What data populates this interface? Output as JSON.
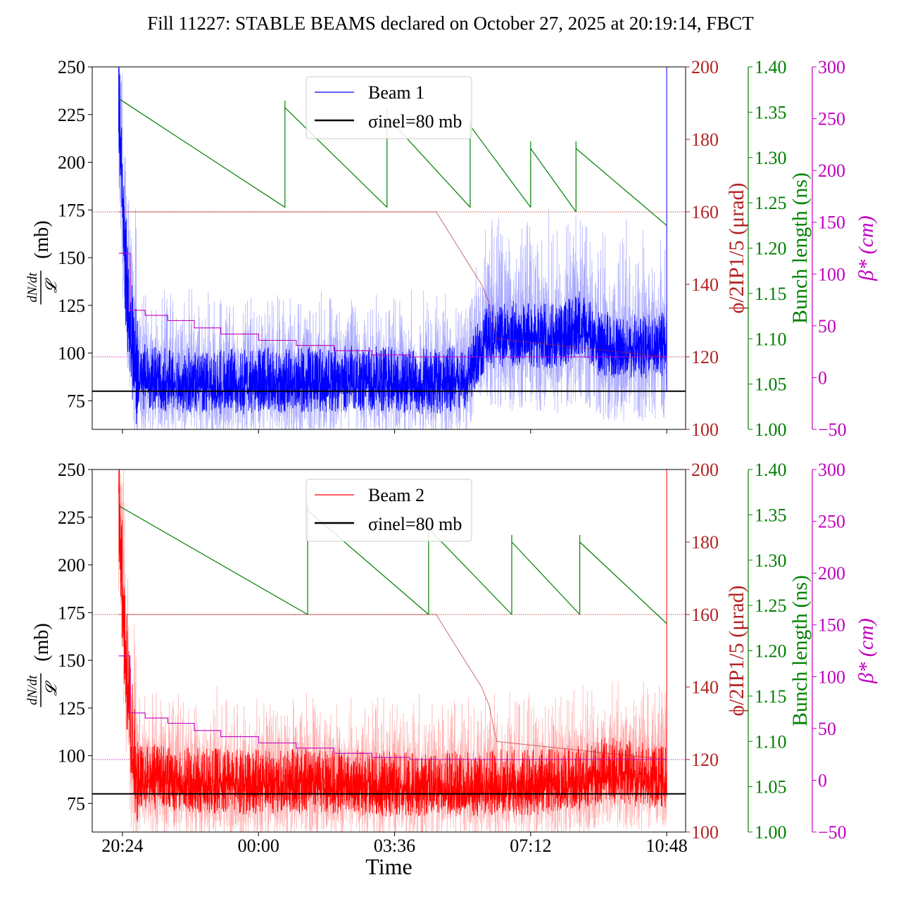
{
  "title": "Fill 11227: STABLE BEAMS declared on October 27, 2025 at 20:19:14, FBCT",
  "xlabel": "Time",
  "colors": {
    "beam1": "#0000ff",
    "beam1_light": "#9999ff",
    "beam2": "#ff0000",
    "beam2_light": "#ff9999",
    "phi": "#b22222",
    "bunch": "#008000",
    "beta": "#c000c0",
    "sigma": "#000000"
  },
  "chart_data": [
    {
      "panel": "top",
      "type": "line",
      "x_ticks": [
        "20:24",
        "00:00",
        "03:36",
        "07:12",
        "10:48"
      ],
      "x_tick_hours": [
        20.4,
        24.0,
        27.6,
        31.2,
        34.8
      ],
      "x_range_hours": [
        19.6,
        35.3
      ],
      "left_axis": {
        "label": "(mb)",
        "label_math": "dN/dt / 𝓛",
        "range": [
          60,
          250
        ],
        "ticks": [
          75,
          100,
          125,
          150,
          175,
          200,
          225,
          250
        ]
      },
      "phi_axis": {
        "label": "ϕ/2IP1/5 (μrad)",
        "range": [
          100,
          200
        ],
        "ticks": [
          100,
          120,
          140,
          160,
          180,
          200
        ]
      },
      "bunch_axis": {
        "label": "Bunch length (ns)",
        "range": [
          1.0,
          1.4
        ],
        "ticks": [
          "1.00",
          "1.05",
          "1.10",
          "1.15",
          "1.20",
          "1.25",
          "1.30",
          "1.35",
          "1.40"
        ]
      },
      "beta_axis": {
        "label": "β* (cm)",
        "range": [
          -50,
          300
        ],
        "ticks": [
          -50,
          0,
          50,
          100,
          150,
          200,
          250,
          300
        ]
      },
      "legend": {
        "position": "top-center",
        "entries": [
          "Beam 1",
          "σinel=80 mb"
        ]
      },
      "sigma_inel": 80,
      "series": [
        {
          "name": "Beam 1",
          "axis": "left",
          "x": [
            20.3,
            20.45,
            20.6,
            20.8,
            21.5,
            22.5,
            23.5,
            24.5,
            25.5,
            26.5,
            27.5,
            28.5,
            29.0,
            29.5,
            30.0,
            31.0,
            31.2,
            32.0,
            32.5,
            33.0,
            34.0,
            34.8
          ],
          "values": [
            240,
            160,
            120,
            90,
            88,
            87,
            87,
            88,
            88,
            89,
            88,
            87,
            88,
            90,
            110,
            113,
            112,
            110,
            118,
            107,
            105,
            107
          ]
        },
        {
          "name": "ϕ",
          "axis": "phi",
          "x": [
            20.3,
            28.7,
            29.0,
            29.3,
            29.6,
            29.9,
            30.1,
            30.3,
            34.8
          ],
          "values": [
            160,
            160,
            155,
            150,
            145,
            140,
            135,
            125,
            120
          ]
        },
        {
          "name": "Bunch length",
          "axis": "bunch",
          "segments": [
            {
              "x": [
                20.3,
                24.7
              ],
              "values": [
                1.365,
                1.245
              ]
            },
            {
              "x": [
                24.7,
                27.4
              ],
              "values": [
                1.355,
                1.245
              ]
            },
            {
              "x": [
                27.4,
                29.6
              ],
              "values": [
                1.345,
                1.245
              ]
            },
            {
              "x": [
                29.6,
                31.2
              ],
              "values": [
                1.335,
                1.245
              ]
            },
            {
              "x": [
                31.2,
                32.4
              ],
              "values": [
                1.31,
                1.24
              ]
            },
            {
              "x": [
                32.4,
                34.8
              ],
              "values": [
                1.31,
                1.225
              ]
            }
          ]
        },
        {
          "name": "β*",
          "axis": "beta",
          "x": [
            20.3,
            20.6,
            20.6,
            21.0,
            21.6,
            22.3,
            23.0,
            24.0,
            25.0,
            26.0,
            27.0,
            28.0,
            34.8
          ],
          "values": [
            120,
            120,
            65,
            60,
            55,
            48,
            42,
            36,
            31,
            26,
            22,
            20,
            20
          ]
        }
      ]
    },
    {
      "panel": "bottom",
      "type": "line",
      "x_ticks": [
        "20:24",
        "00:00",
        "03:36",
        "07:12",
        "10:48"
      ],
      "x_tick_hours": [
        20.4,
        24.0,
        27.6,
        31.2,
        34.8
      ],
      "x_range_hours": [
        19.6,
        35.3
      ],
      "left_axis": {
        "label": "(mb)",
        "label_math": "dN/dt / 𝓛",
        "range": [
          60,
          250
        ],
        "ticks": [
          75,
          100,
          125,
          150,
          175,
          200,
          225,
          250
        ]
      },
      "phi_axis": {
        "label": "ϕ/2IP1/5 (μrad)",
        "range": [
          100,
          200
        ],
        "ticks": [
          100,
          120,
          140,
          160,
          180,
          200
        ]
      },
      "bunch_axis": {
        "label": "Bunch length (ns)",
        "range": [
          1.0,
          1.4
        ],
        "ticks": [
          "1.00",
          "1.05",
          "1.10",
          "1.15",
          "1.20",
          "1.25",
          "1.30",
          "1.35",
          "1.40"
        ]
      },
      "beta_axis": {
        "label": "β* (cm)",
        "range": [
          -50,
          300
        ],
        "ticks": [
          -50,
          0,
          50,
          100,
          150,
          200,
          250,
          300
        ]
      },
      "legend": {
        "position": "top-center",
        "entries": [
          "Beam 2",
          "σinel=80 mb"
        ]
      },
      "sigma_inel": 80,
      "series": [
        {
          "name": "Beam 2",
          "axis": "left",
          "x": [
            20.3,
            20.45,
            20.6,
            20.8,
            21.5,
            22.5,
            23.5,
            24.5,
            25.5,
            26.5,
            27.5,
            28.5,
            29.5,
            30.5,
            31.5,
            32.5,
            33.2,
            34.0,
            34.8
          ],
          "values": [
            240,
            170,
            120,
            92,
            90,
            89,
            88,
            88,
            89,
            88,
            87,
            87,
            87,
            88,
            88,
            90,
            95,
            92,
            92
          ]
        },
        {
          "name": "ϕ",
          "axis": "phi",
          "x": [
            20.3,
            28.7,
            29.0,
            29.3,
            29.6,
            29.9,
            30.1,
            30.3,
            34.8
          ],
          "values": [
            160,
            160,
            155,
            150,
            145,
            140,
            135,
            125,
            120
          ]
        },
        {
          "name": "Bunch length",
          "axis": "bunch",
          "segments": [
            {
              "x": [
                20.3,
                25.3
              ],
              "values": [
                1.36,
                1.24
              ]
            },
            {
              "x": [
                25.3,
                28.5
              ],
              "values": [
                1.355,
                1.24
              ]
            },
            {
              "x": [
                28.5,
                30.7
              ],
              "values": [
                1.335,
                1.24
              ]
            },
            {
              "x": [
                30.7,
                32.5
              ],
              "values": [
                1.32,
                1.24
              ]
            },
            {
              "x": [
                32.5,
                34.8
              ],
              "values": [
                1.32,
                1.23
              ]
            }
          ]
        },
        {
          "name": "β*",
          "axis": "beta",
          "x": [
            20.3,
            20.6,
            20.6,
            21.0,
            21.6,
            22.3,
            23.0,
            24.0,
            25.0,
            26.0,
            27.0,
            28.0,
            34.8
          ],
          "values": [
            120,
            120,
            65,
            60,
            55,
            48,
            42,
            36,
            31,
            26,
            22,
            20,
            20
          ]
        }
      ]
    }
  ]
}
